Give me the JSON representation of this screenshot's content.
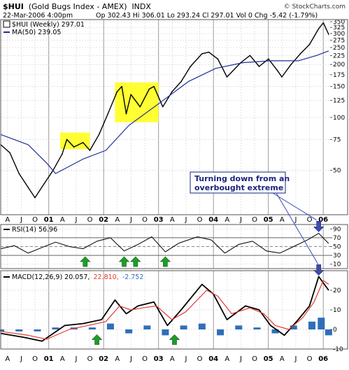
{
  "header": {
    "symbol": "$HUI",
    "name": "(Gold Bugs Index - AMEX)",
    "exchange": "INDX",
    "date": "22-Mar-2006 4:00pm",
    "ohlc": "Op 302.43  Hi 306.01  Lo 293.24  Cl 297.01  Vol 0  Chg -5.42 (-1.79%)",
    "source": "© StockCharts.com"
  },
  "colors": {
    "price": "#000000",
    "highlight_line": "#8e24aa",
    "ma": "#1f2f98",
    "rsi": "#000000",
    "macd": "#000000",
    "signal": "#e53935",
    "hist": "#2e6fb8",
    "highlight_box": "#ffff33",
    "arrow_green": "#1f9b2a",
    "arrow_blue": "#3c49b8",
    "annotation_text": "#1a237e"
  },
  "annotation": {
    "line1": "Turning down from an",
    "line2": "overbought extreme"
  },
  "chart_data": [
    {
      "type": "line",
      "title": "$HUI (Weekly) 297.01",
      "scale": "log",
      "ylim": [
        28,
        360
      ],
      "x_range": [
        "2000-04",
        "2006-03"
      ],
      "series": [
        {
          "name": "$HUI (Weekly) 297.01",
          "points": [
            [
              "2000-04-01",
              70
            ],
            [
              "2000-06-01",
              63
            ],
            [
              "2000-08-01",
              48
            ],
            [
              "2000-10-01",
              40
            ],
            [
              "2000-11-15",
              35
            ],
            [
              "2001-01-15",
              42
            ],
            [
              "2001-03-15",
              50
            ],
            [
              "2001-05-15",
              62
            ],
            [
              "2001-06-15",
              75
            ],
            [
              "2001-08-01",
              68
            ],
            [
              "2001-10-01",
              72
            ],
            [
              "2001-11-15",
              65
            ],
            [
              "2002-01-15",
              80
            ],
            [
              "2002-03-15",
              105
            ],
            [
              "2002-05-15",
              140
            ],
            [
              "2002-06-15",
              150
            ],
            [
              "2002-07-15",
              105
            ],
            [
              "2002-08-15",
              135
            ],
            [
              "2002-10-15",
              115
            ],
            [
              "2002-12-15",
              145
            ],
            [
              "2003-01-15",
              150
            ],
            [
              "2003-03-15",
              115
            ],
            [
              "2003-05-15",
              140
            ],
            [
              "2003-07-15",
              160
            ],
            [
              "2003-09-15",
              195
            ],
            [
              "2003-12-01",
              230
            ],
            [
              "2004-01-15",
              235
            ],
            [
              "2004-03-15",
              215
            ],
            [
              "2004-05-15",
              170
            ],
            [
              "2004-08-15",
              205
            ],
            [
              "2004-10-15",
              225
            ],
            [
              "2004-12-15",
              195
            ],
            [
              "2005-02-15",
              215
            ],
            [
              "2005-04-15",
              185
            ],
            [
              "2005-05-15",
              170
            ],
            [
              "2005-07-15",
              200
            ],
            [
              "2005-09-15",
              230
            ],
            [
              "2005-11-15",
              260
            ],
            [
              "2006-01-15",
              320
            ],
            [
              "2006-02-15",
              345
            ],
            [
              "2006-03-22",
              297
            ]
          ]
        },
        {
          "name": "MA(50) 239.05",
          "points": [
            [
              "2000-04-01",
              80
            ],
            [
              "2000-10-01",
              70
            ],
            [
              "2001-02-01",
              55
            ],
            [
              "2001-04-01",
              48
            ],
            [
              "2001-10-01",
              58
            ],
            [
              "2002-03-01",
              65
            ],
            [
              "2002-08-01",
              90
            ],
            [
              "2003-03-01",
              122
            ],
            [
              "2003-09-01",
              160
            ],
            [
              "2004-03-01",
              190
            ],
            [
              "2004-09-01",
              205
            ],
            [
              "2005-03-01",
              210
            ],
            [
              "2005-09-01",
              210
            ],
            [
              "2006-01-01",
              225
            ],
            [
              "2006-03-22",
              239
            ]
          ]
        }
      ],
      "y_ticks": [
        50,
        75,
        100,
        125,
        150,
        175,
        200,
        225,
        250,
        275,
        300,
        325,
        350
      ],
      "highlights": [
        {
          "from": "2001-05-01",
          "to": "2001-11-15",
          "ylim": [
            66,
            82
          ]
        },
        {
          "from": "2002-05-01",
          "to": "2003-02-15",
          "ylim": [
            94,
            158
          ]
        }
      ],
      "x_labels": [
        "A",
        "J",
        "O",
        "01",
        "A",
        "J",
        "O",
        "02",
        "A",
        "J",
        "O",
        "03",
        "A",
        "J",
        "O",
        "04",
        "A",
        "J",
        "O",
        "05",
        "A",
        "J",
        "O",
        "06"
      ]
    },
    {
      "type": "line",
      "title": "RSI(14) 56.96",
      "ylim": [
        0,
        100
      ],
      "y_ticks": [
        10,
        30,
        50,
        70,
        90
      ],
      "reference_lines": [
        30,
        50,
        70
      ],
      "series": [
        {
          "name": "RSI(14) 56.96",
          "points": [
            [
              "2000-04-01",
              45
            ],
            [
              "2000-07-01",
              52
            ],
            [
              "2000-10-01",
              35
            ],
            [
              "2001-01-01",
              48
            ],
            [
              "2001-04-01",
              60
            ],
            [
              "2001-07-01",
              50
            ],
            [
              "2001-10-01",
              45
            ],
            [
              "2002-01-01",
              62
            ],
            [
              "2002-04-01",
              70
            ],
            [
              "2002-07-01",
              40
            ],
            [
              "2002-10-01",
              55
            ],
            [
              "2003-01-01",
              72
            ],
            [
              "2003-04-01",
              38
            ],
            [
              "2003-07-01",
              58
            ],
            [
              "2003-11-01",
              72
            ],
            [
              "2004-02-01",
              65
            ],
            [
              "2004-05-01",
              35
            ],
            [
              "2004-08-01",
              55
            ],
            [
              "2004-11-01",
              62
            ],
            [
              "2005-02-01",
              40
            ],
            [
              "2005-05-01",
              35
            ],
            [
              "2005-08-01",
              50
            ],
            [
              "2005-11-01",
              65
            ],
            [
              "2006-01-15",
              80
            ],
            [
              "2006-03-22",
              57
            ]
          ]
        }
      ],
      "x_labels": [
        "A",
        "J",
        "O",
        "01",
        "A",
        "J",
        "O",
        "02",
        "A",
        "J",
        "O",
        "03",
        "A",
        "J",
        "O",
        "04",
        "A",
        "J",
        "O",
        "05",
        "A",
        "J",
        "O",
        "06"
      ]
    },
    {
      "type": "line",
      "title": "MACD(12,26,9) 20.057, 22.810, -2.752",
      "ylim": [
        -10,
        30
      ],
      "y_ticks": [
        -10,
        0,
        10,
        20
      ],
      "series": [
        {
          "name": "MACD(12,26,9) 20.057",
          "points": [
            [
              "2000-04-01",
              -2
            ],
            [
              "2000-09-01",
              -4
            ],
            [
              "2001-01-01",
              -6
            ],
            [
              "2001-06-01",
              2
            ],
            [
              "2001-10-01",
              3
            ],
            [
              "2002-02-01",
              5
            ],
            [
              "2002-05-01",
              15
            ],
            [
              "2002-07-15",
              8
            ],
            [
              "2002-10-01",
              12
            ],
            [
              "2003-01-15",
              14
            ],
            [
              "2003-04-15",
              2
            ],
            [
              "2003-07-15",
              10
            ],
            [
              "2003-12-01",
              23
            ],
            [
              "2004-02-15",
              18
            ],
            [
              "2004-05-15",
              5
            ],
            [
              "2004-09-15",
              12
            ],
            [
              "2004-12-15",
              10
            ],
            [
              "2005-03-01",
              2
            ],
            [
              "2005-06-01",
              -3
            ],
            [
              "2005-09-01",
              5
            ],
            [
              "2005-11-15",
              12
            ],
            [
              "2006-01-15",
              27
            ],
            [
              "2006-03-22",
              20
            ]
          ]
        },
        {
          "name": "22.810",
          "points": [
            [
              "2000-04-01",
              -1
            ],
            [
              "2000-10-01",
              -3
            ],
            [
              "2001-02-01",
              -5
            ],
            [
              "2001-07-01",
              0
            ],
            [
              "2001-11-01",
              2
            ],
            [
              "2002-03-01",
              4
            ],
            [
              "2002-06-01",
              12
            ],
            [
              "2002-08-15",
              10
            ],
            [
              "2002-11-01",
              11
            ],
            [
              "2003-02-01",
              12
            ],
            [
              "2003-05-15",
              5
            ],
            [
              "2003-08-15",
              9
            ],
            [
              "2004-01-01",
              20
            ],
            [
              "2004-03-15",
              17
            ],
            [
              "2004-06-15",
              8
            ],
            [
              "2004-10-15",
              11
            ],
            [
              "2005-01-15",
              8
            ],
            [
              "2005-04-01",
              2
            ],
            [
              "2005-07-01",
              0
            ],
            [
              "2005-10-01",
              6
            ],
            [
              "2005-12-15",
              14
            ],
            [
              "2006-02-15",
              25
            ],
            [
              "2006-03-22",
              23
            ]
          ]
        }
      ],
      "histogram": [
        [
          "2000-04-01",
          -1
        ],
        [
          "2000-08-01",
          -1
        ],
        [
          "2000-12-01",
          -1
        ],
        [
          "2001-04-01",
          1
        ],
        [
          "2001-08-01",
          1
        ],
        [
          "2001-12-01",
          1
        ],
        [
          "2002-04-01",
          3
        ],
        [
          "2002-08-01",
          -2
        ],
        [
          "2002-12-01",
          2
        ],
        [
          "2003-04-01",
          -3
        ],
        [
          "2003-08-01",
          2
        ],
        [
          "2003-12-01",
          3
        ],
        [
          "2004-04-01",
          -3
        ],
        [
          "2004-08-01",
          2
        ],
        [
          "2004-12-01",
          1
        ],
        [
          "2005-04-01",
          -2
        ],
        [
          "2005-08-01",
          2
        ],
        [
          "2005-12-01",
          4
        ],
        [
          "2006-02-01",
          6
        ],
        [
          "2006-03-22",
          -3
        ]
      ],
      "x_labels": [
        "A",
        "J",
        "O",
        "01",
        "A",
        "J",
        "O",
        "02",
        "A",
        "J",
        "O",
        "03",
        "A",
        "J",
        "O",
        "04",
        "A",
        "J",
        "O",
        "05",
        "A",
        "J",
        "O",
        "06"
      ]
    }
  ],
  "legends": {
    "price_label": "$HUI (Weekly) 297.01",
    "ma_label": "MA(50) 239.05",
    "rsi_label": "RSI(14) 56.96",
    "macd_label": "MACD(12,26,9) 20.057,",
    "macd_signal_label": "22.810,",
    "macd_hist_label": "-2.752"
  }
}
